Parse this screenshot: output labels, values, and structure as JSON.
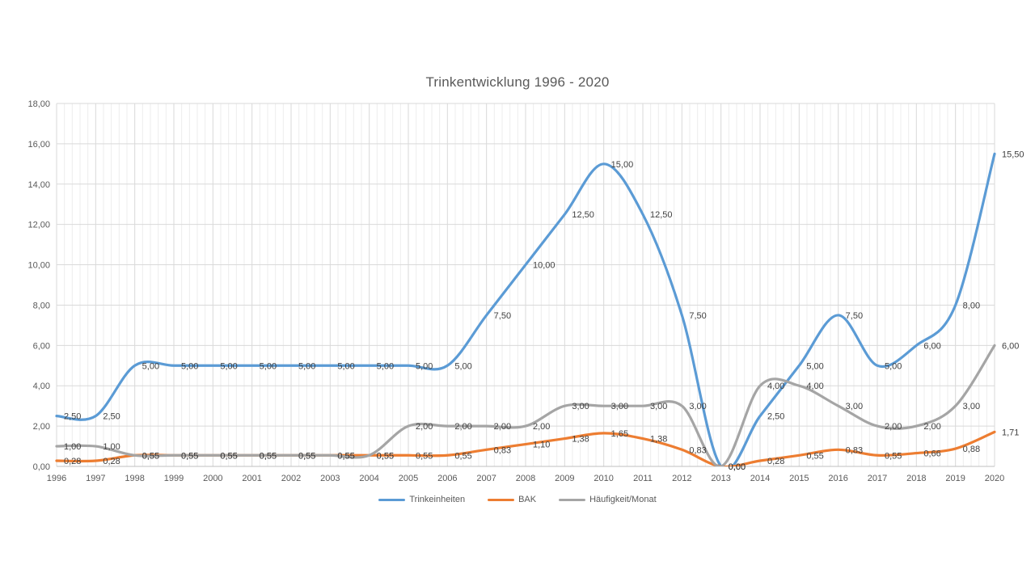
{
  "chart_data": {
    "type": "line",
    "title": "Trinkentwicklung 1996 - 2020",
    "xlabel": "",
    "ylabel": "",
    "x": [
      1996,
      1997,
      1998,
      1999,
      2000,
      2001,
      2002,
      2003,
      2004,
      2005,
      2006,
      2007,
      2008,
      2009,
      2010,
      2011,
      2012,
      2013,
      2014,
      2015,
      2016,
      2017,
      2018,
      2019,
      2020
    ],
    "series": [
      {
        "name": "Trinkeinheiten",
        "color": "#5B9BD5",
        "values": [
          2.5,
          2.5,
          5,
          5,
          5,
          5,
          5,
          5,
          5,
          5,
          5,
          7.5,
          10,
          12.5,
          15,
          12.5,
          7.5,
          0,
          2.5,
          5,
          7.5,
          5,
          6,
          8,
          15.5
        ],
        "labels": [
          "2,50",
          "2,50",
          "5,00",
          "5,00",
          "5,00",
          "5,00",
          "5,00",
          "5,00",
          "5,00",
          "5,00",
          "5,00",
          "7,50",
          "10,00",
          "12,50",
          "15,00",
          "12,50",
          "7,50",
          "0,00",
          "2,50",
          "5,00",
          "7,50",
          "5,00",
          "6,00",
          "8,00",
          "15,50"
        ]
      },
      {
        "name": "BAK",
        "color": "#ED7D31",
        "values": [
          0.28,
          0.28,
          0.55,
          0.55,
          0.55,
          0.55,
          0.55,
          0.55,
          0.55,
          0.55,
          0.55,
          0.83,
          1.1,
          1.38,
          1.65,
          1.38,
          0.83,
          0,
          0.28,
          0.55,
          0.83,
          0.55,
          0.66,
          0.88,
          1.71
        ],
        "labels": [
          "0,28",
          "0,28",
          "0,55",
          "0,55",
          "0,55",
          "0,55",
          "0,55",
          "0,55",
          "0,55",
          "0,55",
          "0,55",
          "0,83",
          "1,10",
          "1,38",
          "1,65",
          "1,38",
          "0,83",
          "0,00",
          "0,28",
          "0,55",
          "0,83",
          "0,55",
          "0,66",
          "0,88",
          "1,71"
        ]
      },
      {
        "name": "Häufigkeit/Monat",
        "color": "#A5A5A5",
        "values": [
          1,
          1,
          0.55,
          0.55,
          0.55,
          0.55,
          0.55,
          0.55,
          0.55,
          2,
          2,
          2,
          2,
          3,
          3,
          3,
          3,
          0,
          4,
          4,
          3,
          2,
          2,
          3,
          6
        ],
        "labels": [
          "1,00",
          "1,00",
          "0,55",
          "0,55",
          "0,55",
          "0,55",
          "0,55",
          "0,55",
          "0,55",
          "2,00",
          "2,00",
          "2,00",
          "2,00",
          "3,00",
          "3,00",
          "3,00",
          "3,00",
          "0,00",
          "4,00",
          "4,00",
          "3,00",
          "2,00",
          "2,00",
          "3,00",
          "6,00"
        ]
      }
    ],
    "ylim": [
      0,
      18
    ],
    "ytick_step": 2,
    "ytick_labels": [
      "0,00",
      "2,00",
      "4,00",
      "6,00",
      "8,00",
      "10,00",
      "12,00",
      "14,00",
      "16,00",
      "18,00"
    ],
    "grid": {
      "on": true,
      "major_color": "#D9D9D9",
      "minor_color": "#EDEDED",
      "minor_per_interval": 4,
      "axis_color": "#BFBFBF"
    },
    "smooth": true,
    "legend_position": "bottom",
    "data_label_color": "#404040",
    "axis_text_color": "#595959",
    "title_color": "#595959"
  }
}
